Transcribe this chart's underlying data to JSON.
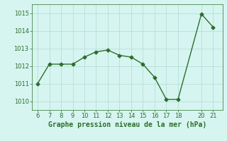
{
  "x": [
    6,
    7,
    8,
    9,
    10,
    11,
    12,
    13,
    14,
    15,
    16,
    17,
    18,
    20,
    21
  ],
  "y": [
    1011.0,
    1012.1,
    1012.1,
    1012.1,
    1012.5,
    1012.8,
    1012.9,
    1012.6,
    1012.5,
    1012.1,
    1011.35,
    1010.1,
    1010.1,
    1014.95,
    1014.2
  ],
  "line_color": "#2d6e2d",
  "marker": "D",
  "marker_size": 2.5,
  "linewidth": 1.0,
  "background_color": "#d6f5f0",
  "grid_color": "#b8deda",
  "xlabel": "Graphe pression niveau de la mer (hPa)",
  "xlabel_color": "#2d6e2d",
  "xlabel_fontsize": 7,
  "tick_color": "#2d6e2d",
  "tick_fontsize": 6,
  "ylim": [
    1009.5,
    1015.5
  ],
  "yticks": [
    1010,
    1011,
    1012,
    1013,
    1014,
    1015
  ],
  "xlim": [
    5.5,
    21.8
  ],
  "xticks": [
    6,
    7,
    8,
    9,
    10,
    11,
    12,
    13,
    14,
    15,
    16,
    17,
    18,
    20,
    21
  ]
}
